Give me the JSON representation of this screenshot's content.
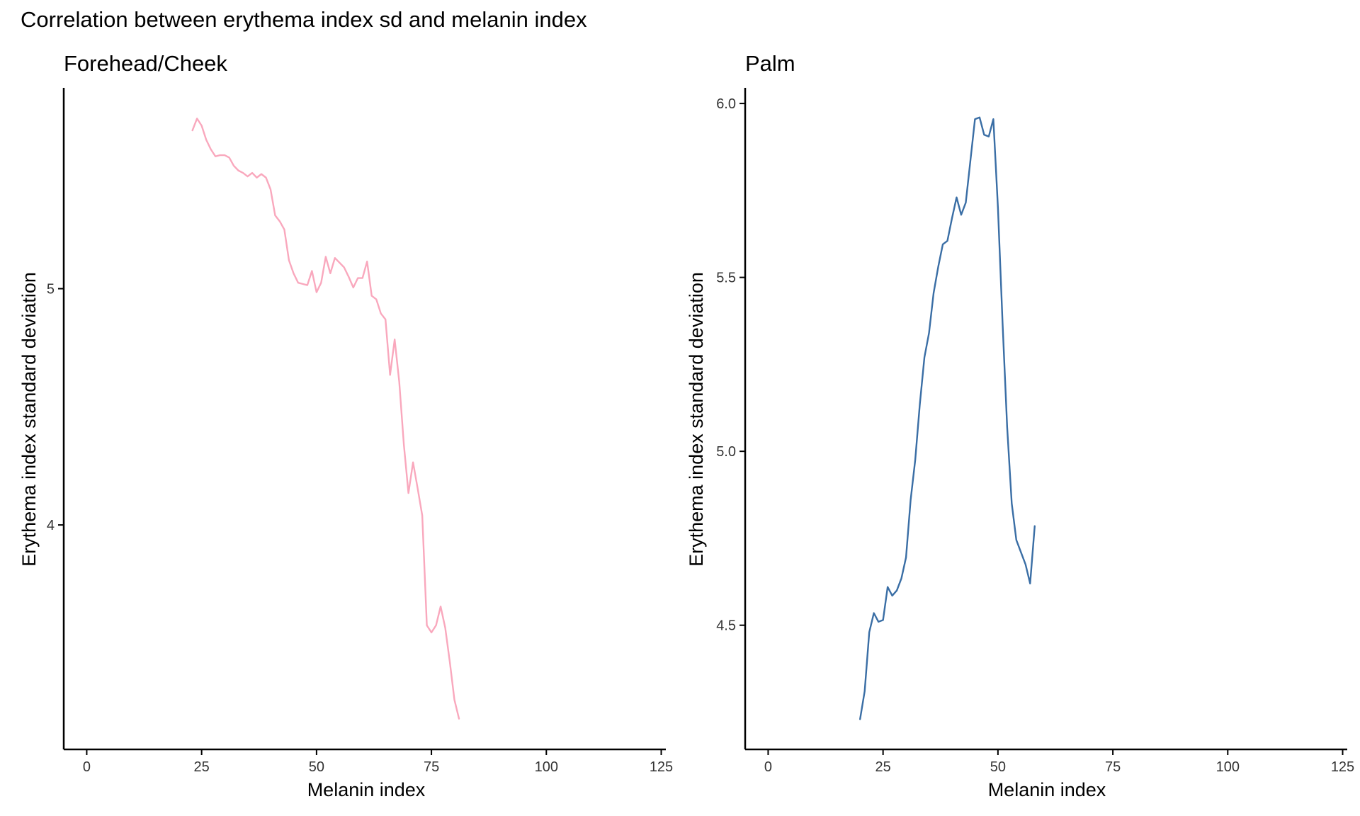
{
  "figure": {
    "title": "Correlation between erythema index sd and melanin index"
  },
  "chart_data": [
    {
      "type": "line",
      "title": "Forehead/Cheek",
      "xlabel": "Melanin index",
      "ylabel": "Erythema index standard deviation",
      "xlim": [
        -5,
        126
      ],
      "ylim": [
        3.05,
        5.85
      ],
      "xticks": [
        0,
        25,
        50,
        75,
        100,
        125
      ],
      "yticks": [
        4,
        5
      ],
      "grid": false,
      "color": "#f9a8bd",
      "series": [
        {
          "x": [
            23,
            24,
            25,
            26,
            27,
            28,
            29,
            30,
            31,
            32,
            33,
            34,
            35,
            36,
            37,
            38,
            39,
            40,
            41,
            42,
            43,
            44,
            45,
            46,
            47,
            48,
            49,
            50,
            51,
            52,
            53,
            54,
            55,
            56,
            57,
            58,
            59,
            60,
            61,
            62,
            63,
            64,
            65,
            66,
            67,
            68,
            69,
            70,
            71,
            72,
            73,
            74,
            75,
            76,
            77,
            78,
            79,
            80,
            81
          ],
          "y": [
            5.67,
            5.72,
            5.69,
            5.63,
            5.59,
            5.56,
            5.565,
            5.565,
            5.555,
            5.52,
            5.5,
            5.49,
            5.475,
            5.49,
            5.47,
            5.485,
            5.47,
            5.42,
            5.31,
            5.285,
            5.25,
            5.12,
            5.065,
            5.025,
            5.02,
            5.015,
            5.075,
            4.985,
            5.025,
            5.135,
            5.065,
            5.13,
            5.11,
            5.09,
            5.05,
            5.005,
            5.045,
            5.045,
            5.115,
            4.97,
            4.955,
            4.895,
            4.87,
            4.635,
            4.785,
            4.605,
            4.34,
            4.135,
            4.265,
            4.155,
            4.04,
            3.575,
            3.545,
            3.575,
            3.655,
            3.565,
            3.42,
            3.26,
            3.18
          ]
        }
      ]
    },
    {
      "type": "line",
      "title": "Palm",
      "xlabel": "Melanin index",
      "ylabel": "Erythema index standard deviation",
      "xlim": [
        -5,
        126
      ],
      "ylim": [
        4.143,
        6.045
      ],
      "xticks": [
        0,
        25,
        50,
        75,
        100,
        125
      ],
      "yticks": [
        4.5,
        5.0,
        5.5,
        6.0
      ],
      "ytick_labels": [
        "4.5",
        "5.0",
        "5.5",
        "6.0"
      ],
      "grid": false,
      "color": "#3a6ea5",
      "series": [
        {
          "x": [
            20,
            21,
            22,
            23,
            24,
            25,
            26,
            27,
            28,
            29,
            30,
            31,
            32,
            33,
            34,
            35,
            36,
            37,
            38,
            39,
            40,
            41,
            42,
            43,
            44,
            45,
            46,
            47,
            48,
            49,
            50,
            51,
            52,
            53,
            54,
            55,
            56,
            57,
            58
          ],
          "y": [
            4.23,
            4.31,
            4.48,
            4.535,
            4.51,
            4.515,
            4.61,
            4.585,
            4.6,
            4.635,
            4.695,
            4.86,
            4.975,
            5.135,
            5.27,
            5.34,
            5.455,
            5.53,
            5.595,
            5.605,
            5.67,
            5.73,
            5.68,
            5.715,
            5.835,
            5.955,
            5.96,
            5.91,
            5.905,
            5.955,
            5.7,
            5.37,
            5.07,
            4.85,
            4.745,
            4.71,
            4.675,
            4.62,
            4.785
          ]
        }
      ]
    }
  ]
}
